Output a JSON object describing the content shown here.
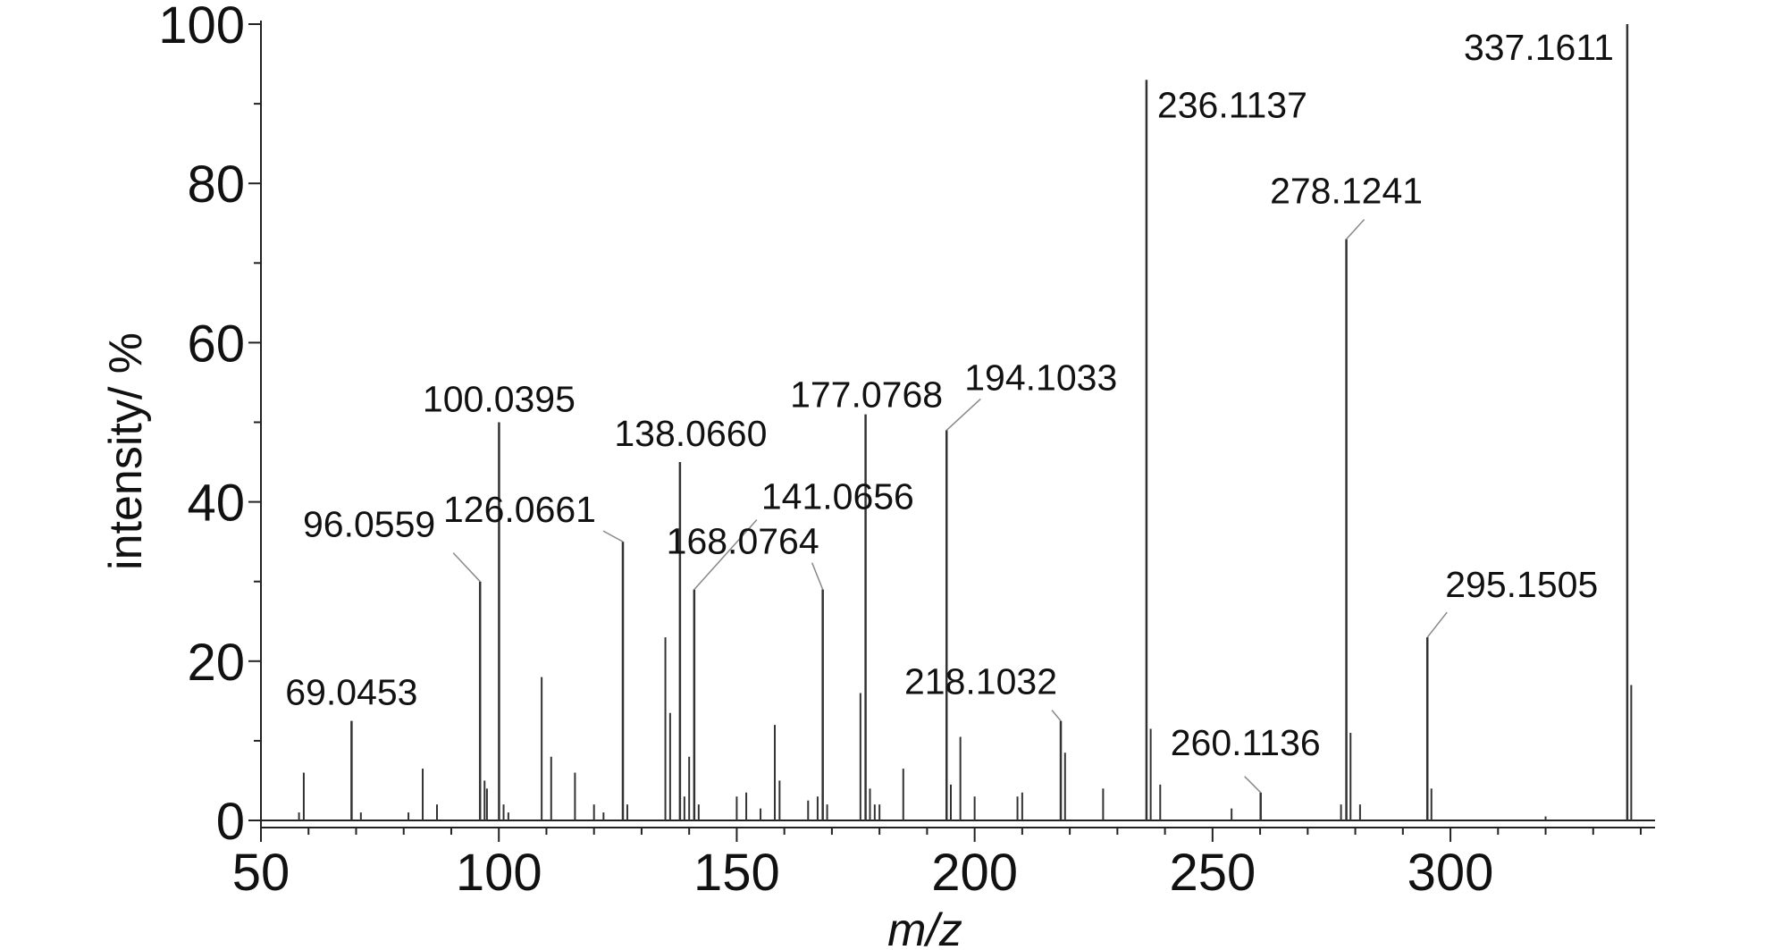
{
  "chart_data": {
    "type": "bar",
    "xlabel": "m/z",
    "ylabel": "intensity/ %",
    "xlim": [
      50,
      343
    ],
    "ylim": [
      0,
      100
    ],
    "x_ticks": [
      50,
      100,
      150,
      200,
      250,
      300
    ],
    "y_ticks": [
      0,
      20,
      40,
      60,
      80,
      100
    ],
    "grid": false,
    "legend": "none",
    "colors": {
      "axis": "#222222",
      "peak": "#333333",
      "leader": "#888888",
      "text": "#111111"
    },
    "labeled_peaks": [
      {
        "x": 69.0453,
        "y": 12.5,
        "label": "69.0453"
      },
      {
        "x": 96.0559,
        "y": 30.0,
        "label": "96.0559"
      },
      {
        "x": 100.0395,
        "y": 50.0,
        "label": "100.0395"
      },
      {
        "x": 126.0661,
        "y": 35.0,
        "label": "126.0661"
      },
      {
        "x": 138.066,
        "y": 45.0,
        "label": "138.0660"
      },
      {
        "x": 141.0656,
        "y": 29.0,
        "label": "141.0656"
      },
      {
        "x": 168.0764,
        "y": 29.0,
        "label": "168.0764"
      },
      {
        "x": 177.0768,
        "y": 51.0,
        "label": "177.0768"
      },
      {
        "x": 194.1033,
        "y": 49.0,
        "label": "194.1033"
      },
      {
        "x": 218.1032,
        "y": 12.5,
        "label": "218.1032"
      },
      {
        "x": 236.1137,
        "y": 93.0,
        "label": "236.1137"
      },
      {
        "x": 260.1136,
        "y": 3.5,
        "label": "260.1136"
      },
      {
        "x": 278.1241,
        "y": 73.0,
        "label": "278.1241"
      },
      {
        "x": 295.1505,
        "y": 23.0,
        "label": "295.1505"
      },
      {
        "x": 337.1611,
        "y": 100.0,
        "label": "337.1611"
      }
    ],
    "minor_peaks": [
      {
        "x": 58.0,
        "y": 1.0
      },
      {
        "x": 59.0,
        "y": 6.0
      },
      {
        "x": 71.0,
        "y": 1.0
      },
      {
        "x": 81.0,
        "y": 1.0
      },
      {
        "x": 84.0,
        "y": 6.5
      },
      {
        "x": 87.0,
        "y": 2.0
      },
      {
        "x": 97.0,
        "y": 5.0
      },
      {
        "x": 97.5,
        "y": 4.0
      },
      {
        "x": 101.0,
        "y": 2.0
      },
      {
        "x": 102.0,
        "y": 1.0
      },
      {
        "x": 109.0,
        "y": 18.0
      },
      {
        "x": 111.0,
        "y": 8.0
      },
      {
        "x": 116.0,
        "y": 6.0
      },
      {
        "x": 120.0,
        "y": 2.0
      },
      {
        "x": 122.0,
        "y": 1.0
      },
      {
        "x": 127.0,
        "y": 2.0
      },
      {
        "x": 135.0,
        "y": 23.0
      },
      {
        "x": 136.0,
        "y": 13.5
      },
      {
        "x": 139.0,
        "y": 3.0
      },
      {
        "x": 140.0,
        "y": 8.0
      },
      {
        "x": 142.0,
        "y": 2.0
      },
      {
        "x": 150.0,
        "y": 3.0
      },
      {
        "x": 152.0,
        "y": 3.5
      },
      {
        "x": 155.0,
        "y": 1.5
      },
      {
        "x": 158.0,
        "y": 12.0
      },
      {
        "x": 159.0,
        "y": 5.0
      },
      {
        "x": 165.0,
        "y": 2.5
      },
      {
        "x": 167.0,
        "y": 3.0
      },
      {
        "x": 169.0,
        "y": 2.0
      },
      {
        "x": 176.0,
        "y": 16.0
      },
      {
        "x": 178.0,
        "y": 4.0
      },
      {
        "x": 179.0,
        "y": 2.0
      },
      {
        "x": 180.0,
        "y": 2.0
      },
      {
        "x": 185.0,
        "y": 6.5
      },
      {
        "x": 195.0,
        "y": 4.5
      },
      {
        "x": 197.0,
        "y": 10.5
      },
      {
        "x": 200.0,
        "y": 3.0
      },
      {
        "x": 209.0,
        "y": 3.0
      },
      {
        "x": 210.0,
        "y": 3.5
      },
      {
        "x": 219.0,
        "y": 8.5
      },
      {
        "x": 227.0,
        "y": 4.0
      },
      {
        "x": 237.0,
        "y": 11.5
      },
      {
        "x": 239.0,
        "y": 4.5
      },
      {
        "x": 254.0,
        "y": 1.5
      },
      {
        "x": 277.0,
        "y": 2.0
      },
      {
        "x": 279.0,
        "y": 11.0
      },
      {
        "x": 281.0,
        "y": 2.0
      },
      {
        "x": 296.0,
        "y": 4.0
      },
      {
        "x": 320.0,
        "y": 0.5
      },
      {
        "x": 338.0,
        "y": 17.0
      }
    ]
  }
}
